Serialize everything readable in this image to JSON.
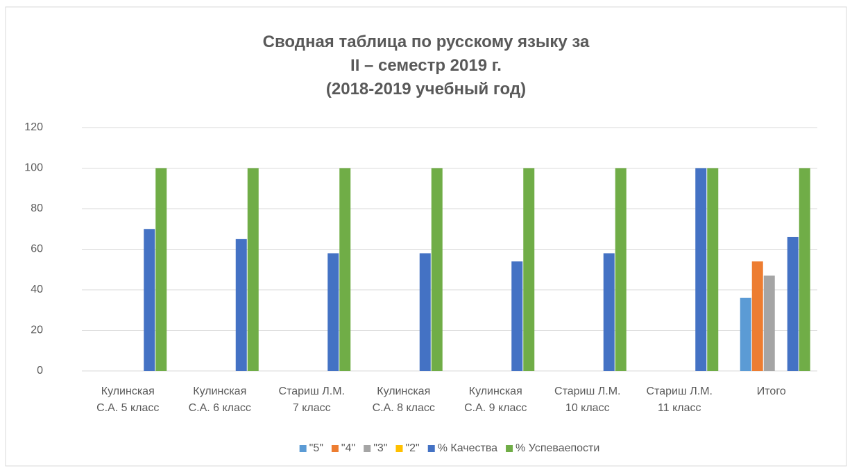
{
  "chart_data": {
    "type": "bar",
    "title": "Сводная таблица по русскому языку за\nII – семестр 2019 г.\n(2018-2019 учебный год)",
    "categories": [
      "Кулинская\nС.А. 5 класс",
      "Кулинская\nС.А. 6 класс",
      "Стариш Л.М.\n7 класс",
      "Кулинская\nС.А. 8 класс",
      "Кулинская\nС.А. 9 класс",
      "Стариш Л.М.\n10 класс",
      "Стариш Л.М.\n11 класс",
      "Итого"
    ],
    "series": [
      {
        "name": "\"5\"",
        "color": "#5b9bd5",
        "values": [
          null,
          null,
          null,
          null,
          null,
          null,
          null,
          36
        ]
      },
      {
        "name": "\"4\"",
        "color": "#ed7d31",
        "values": [
          null,
          null,
          null,
          null,
          null,
          null,
          null,
          54
        ]
      },
      {
        "name": "\"3\"",
        "color": "#a5a5a5",
        "values": [
          null,
          null,
          null,
          null,
          null,
          null,
          null,
          47
        ]
      },
      {
        "name": "\"2\"",
        "color": "#ffc000",
        "values": [
          null,
          null,
          null,
          null,
          null,
          null,
          null,
          0
        ]
      },
      {
        "name": "% Качества",
        "color": "#4472c4",
        "values": [
          70,
          65,
          58,
          58,
          54,
          58,
          100,
          66
        ]
      },
      {
        "name": "% Успеваепости",
        "color": "#70ad47",
        "values": [
          100,
          100,
          100,
          100,
          100,
          100,
          100,
          100
        ]
      }
    ],
    "ylim": [
      0,
      120
    ],
    "yticks": [
      0,
      20,
      40,
      60,
      80,
      100,
      120
    ],
    "grid": true,
    "legend": "bottom"
  }
}
